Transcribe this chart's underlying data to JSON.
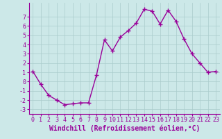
{
  "x": [
    0,
    1,
    2,
    3,
    4,
    5,
    6,
    7,
    8,
    9,
    10,
    11,
    12,
    13,
    14,
    15,
    16,
    17,
    18,
    19,
    20,
    21,
    22,
    23
  ],
  "y": [
    1.1,
    -0.3,
    -1.5,
    -2.0,
    -2.5,
    -2.4,
    -2.3,
    -2.3,
    0.7,
    4.5,
    3.3,
    4.8,
    5.5,
    6.3,
    7.8,
    7.6,
    6.2,
    7.7,
    6.5,
    4.6,
    3.0,
    2.0,
    1.0,
    1.1
  ],
  "line_color": "#990099",
  "marker": "+",
  "marker_size": 4,
  "bg_color": "#cce8e8",
  "grid_color": "#aacccc",
  "xlabel": "Windchill (Refroidissement éolien,°C)",
  "xlabel_fontsize": 7,
  "xlim": [
    -0.5,
    23.5
  ],
  "ylim": [
    -3.5,
    8.5
  ],
  "yticks": [
    -3,
    -2,
    -1,
    0,
    1,
    2,
    3,
    4,
    5,
    6,
    7
  ],
  "xticks": [
    0,
    1,
    2,
    3,
    4,
    5,
    6,
    7,
    8,
    9,
    10,
    11,
    12,
    13,
    14,
    15,
    16,
    17,
    18,
    19,
    20,
    21,
    22,
    23
  ],
  "tick_fontsize": 6,
  "linewidth": 1.0,
  "marker_linewidth": 1.0
}
